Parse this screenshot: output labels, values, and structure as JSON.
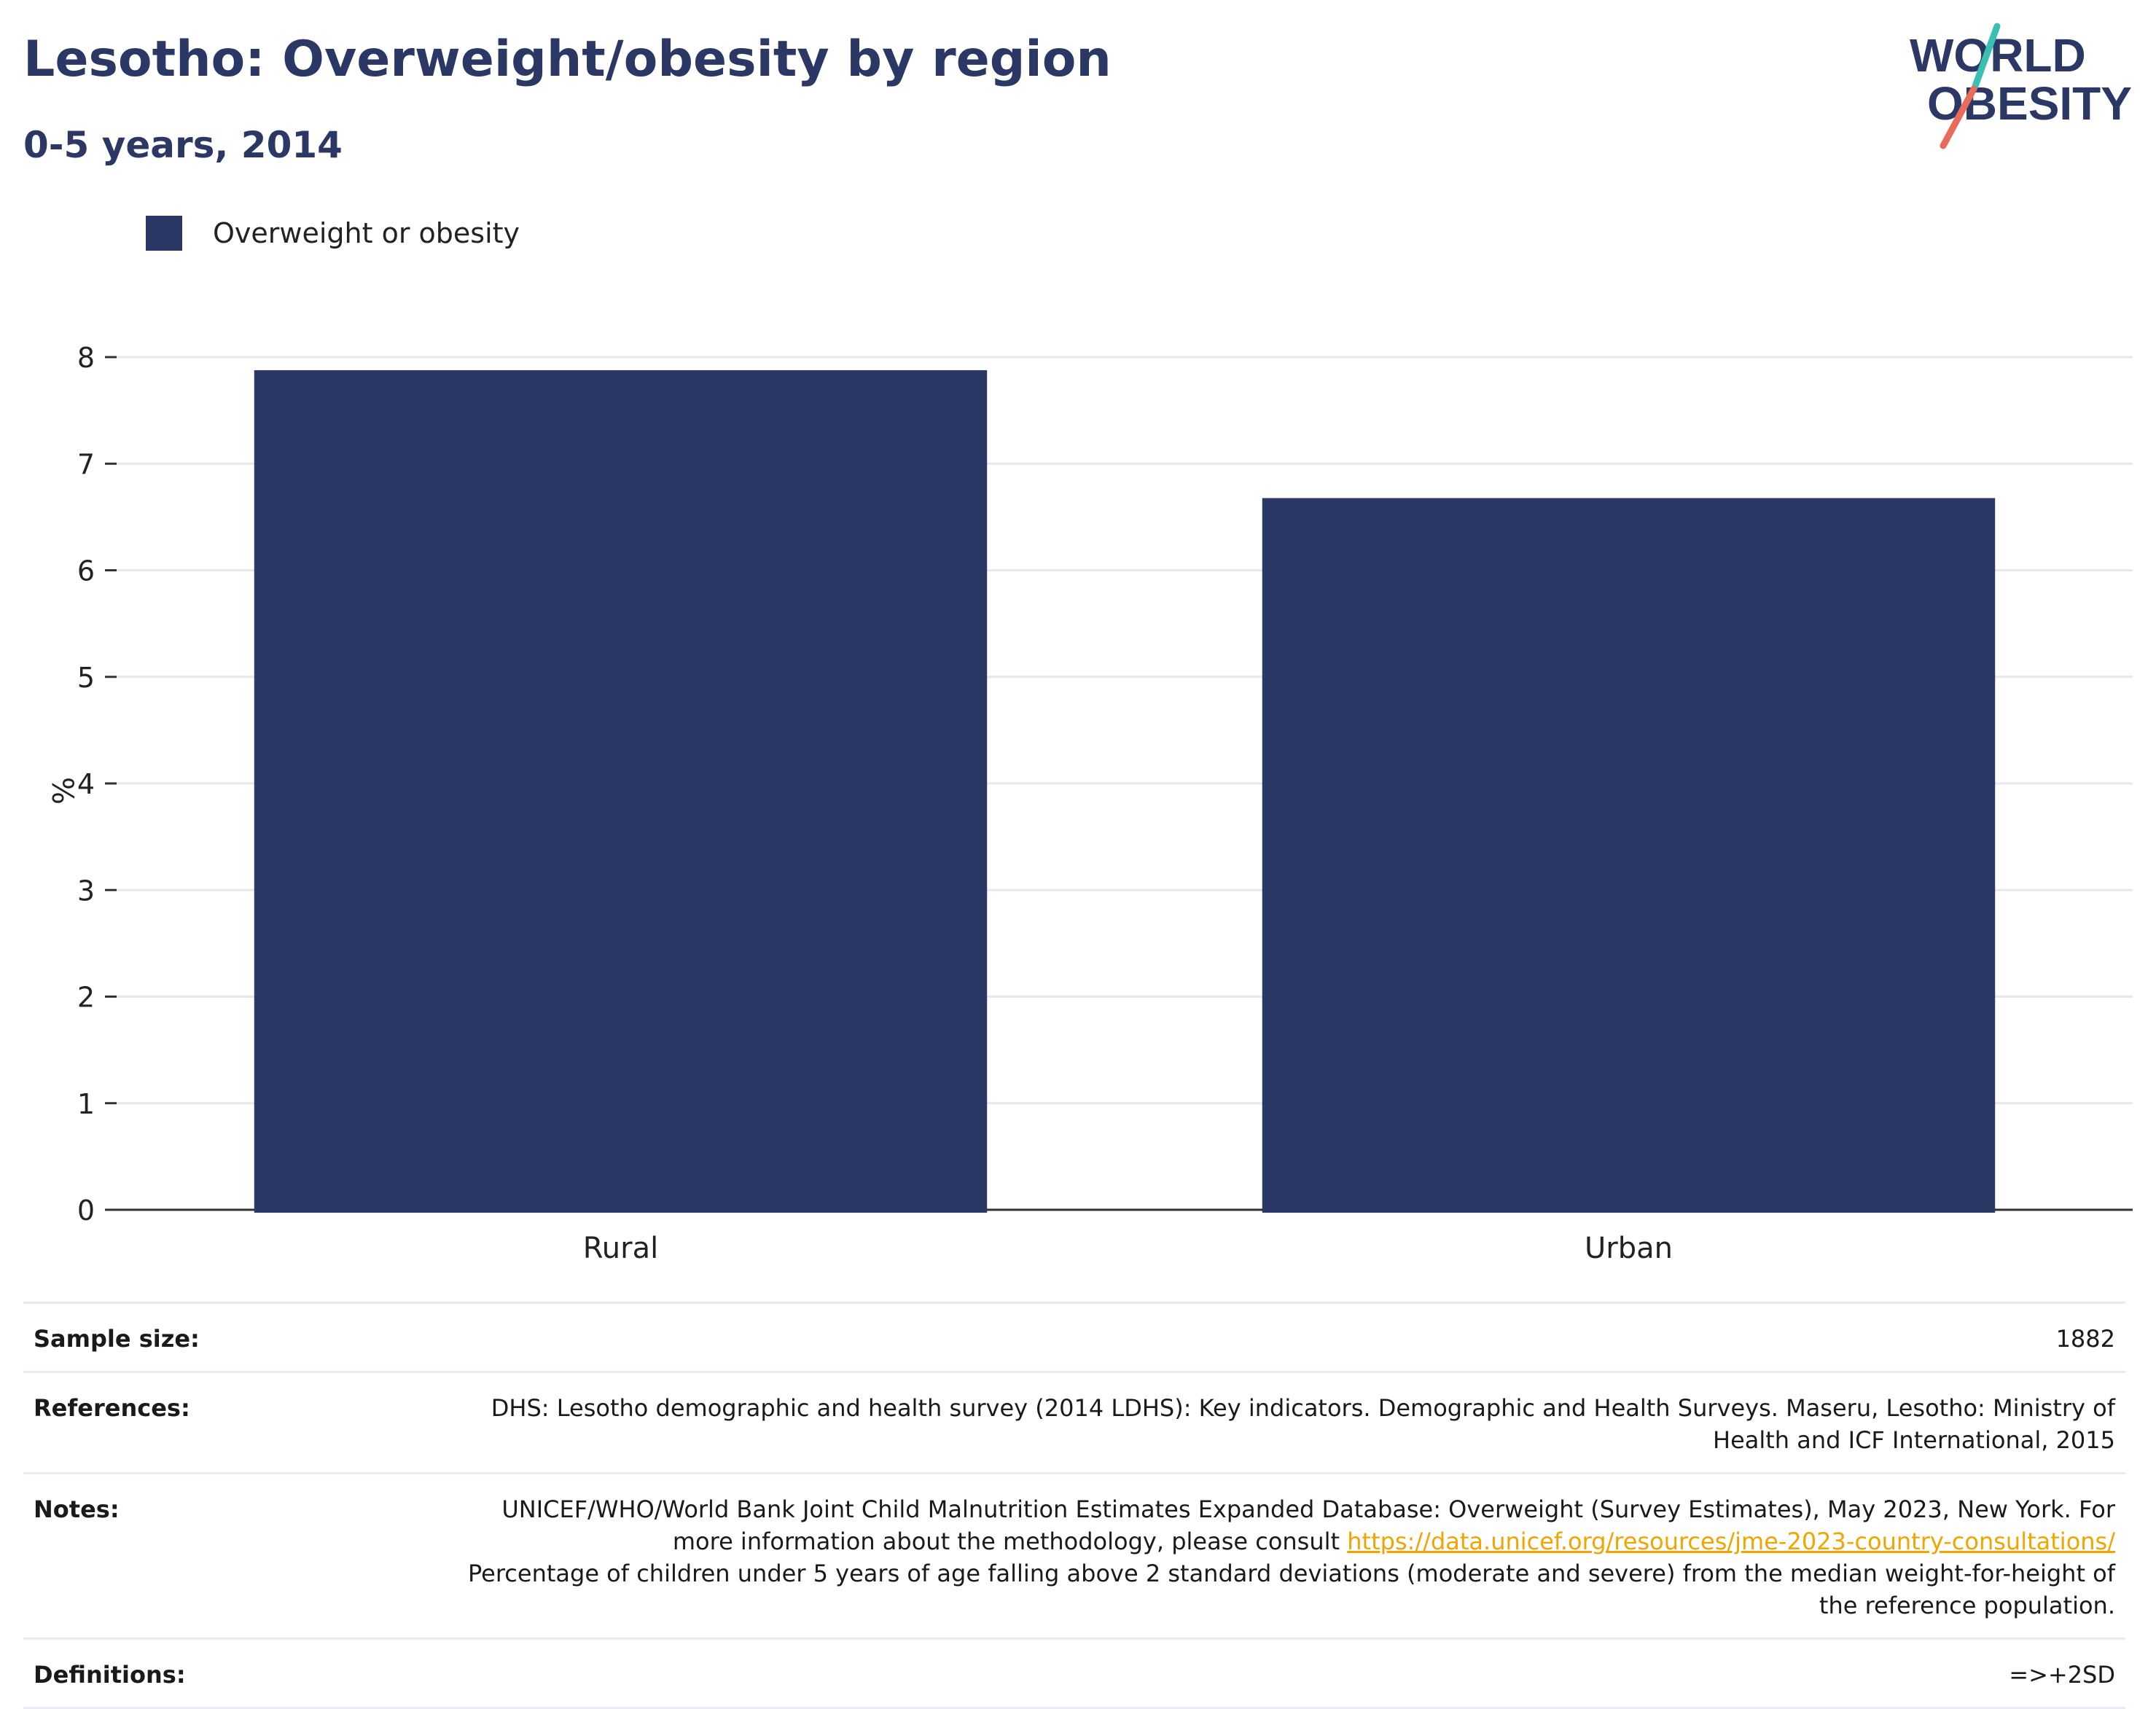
{
  "header": {
    "title": "Lesotho: Overweight/obesity by region",
    "subtitle": "0-5 years, 2014"
  },
  "logo": {
    "line1": "WORLD",
    "line2": "OBESITY",
    "text_color": "#2b3764",
    "slash_colors": [
      "#3bbfb3",
      "#e96b5c"
    ]
  },
  "legend": {
    "items": [
      {
        "label": "Overweight or obesity",
        "color": "#2b3764"
      }
    ]
  },
  "chart_data": {
    "type": "bar",
    "categories": [
      "Rural",
      "Urban"
    ],
    "series": [
      {
        "name": "Overweight or obesity",
        "values": [
          7.85,
          6.65
        ],
        "color": "#2b3764"
      }
    ],
    "ylabel": "%",
    "xlabel": "",
    "ylim": [
      0,
      8
    ],
    "yticks": [
      0,
      1,
      2,
      3,
      4,
      5,
      6,
      7,
      8
    ],
    "grid": true,
    "legend_position": "top-left"
  },
  "info": {
    "sample_size": {
      "label": "Sample size:",
      "value": "1882"
    },
    "references": {
      "label": "References:",
      "value": "DHS: Lesotho demographic and health survey (2014 LDHS): Key indicators. Demographic and Health Surveys. Maseru, Lesotho: Ministry of Health and ICF International, 2015"
    },
    "notes": {
      "label": "Notes:",
      "text_before": "UNICEF/WHO/World Bank Joint Child Malnutrition Estimates Expanded Database: Overweight (Survey Estimates), May 2023, New York. For more information about the methodology, please consult ",
      "link_text": "https://data.unicef.org/resources/jme-2023-country-consultations/",
      "text_after": "Percentage of children under 5 years of age falling above 2 standard deviations (moderate and severe) from the median weight-for-height of the reference population."
    },
    "definitions": {
      "label": "Definitions:",
      "value": "=>+2SD"
    }
  }
}
